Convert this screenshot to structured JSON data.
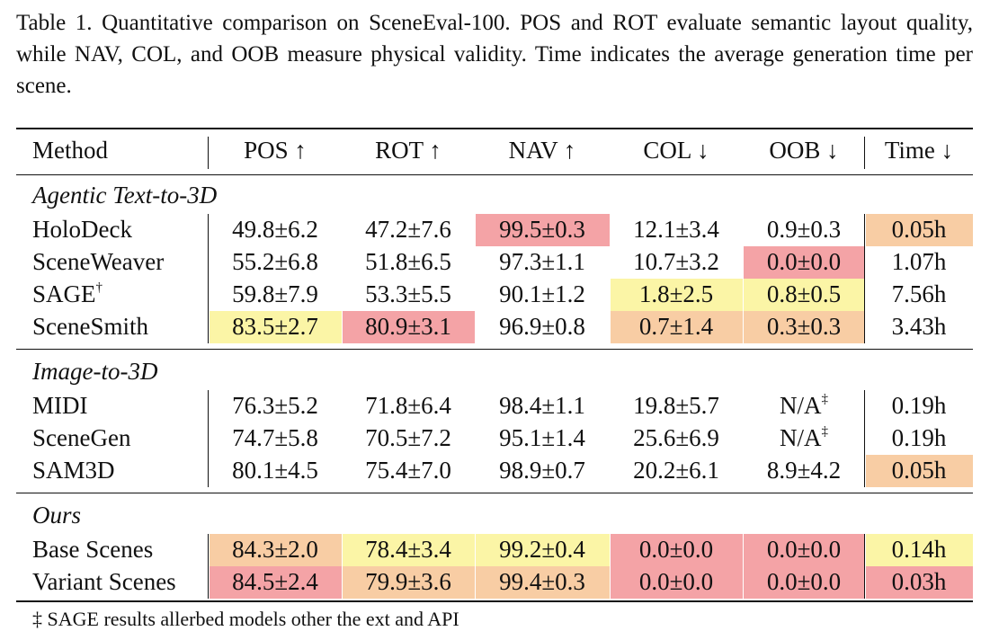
{
  "caption": "Table 1. Quantitative comparison on SceneEval-100. POS and ROT evaluate semantic layout quality, while NAV, COL, and OOB measure physical validity. Time indicates the average generation time per scene.",
  "headers": [
    "Method",
    "POS ↑",
    "ROT ↑",
    "NAV ↑",
    "COL ↓",
    "OOB ↓",
    "Time ↓"
  ],
  "colors": {
    "red": "#f4a3a6",
    "orange": "#f8cda4",
    "yellow": "#fbf5a6"
  },
  "sections": [
    {
      "title": "Agentic Text-to-3D",
      "rows": [
        {
          "method": "HoloDeck",
          "sup": "",
          "cells": [
            {
              "text": "49.8±6.2",
              "hl": ""
            },
            {
              "text": "47.2±7.6",
              "hl": ""
            },
            {
              "text": "99.5±0.3",
              "hl": "red"
            },
            {
              "text": "12.1±3.4",
              "hl": ""
            },
            {
              "text": "0.9±0.3",
              "hl": ""
            },
            {
              "text": "0.05h",
              "hl": "orange"
            }
          ]
        },
        {
          "method": "SceneWeaver",
          "sup": "",
          "cells": [
            {
              "text": "55.2±6.8",
              "hl": ""
            },
            {
              "text": "51.8±6.5",
              "hl": ""
            },
            {
              "text": "97.3±1.1",
              "hl": ""
            },
            {
              "text": "10.7±3.2",
              "hl": ""
            },
            {
              "text": "0.0±0.0",
              "hl": "red"
            },
            {
              "text": "1.07h",
              "hl": ""
            }
          ]
        },
        {
          "method": "SAGE",
          "sup": "†",
          "cells": [
            {
              "text": "59.8±7.9",
              "hl": ""
            },
            {
              "text": "53.3±5.5",
              "hl": ""
            },
            {
              "text": "90.1±1.2",
              "hl": ""
            },
            {
              "text": "1.8±2.5",
              "hl": "yellow"
            },
            {
              "text": "0.8±0.5",
              "hl": "yellow"
            },
            {
              "text": "7.56h",
              "hl": ""
            }
          ]
        },
        {
          "method": "SceneSmith",
          "sup": "",
          "cells": [
            {
              "text": "83.5±2.7",
              "hl": "yellow"
            },
            {
              "text": "80.9±3.1",
              "hl": "red"
            },
            {
              "text": "96.9±0.8",
              "hl": ""
            },
            {
              "text": "0.7±1.4",
              "hl": "orange"
            },
            {
              "text": "0.3±0.3",
              "hl": "orange"
            },
            {
              "text": "3.43h",
              "hl": ""
            }
          ]
        }
      ]
    },
    {
      "title": "Image-to-3D",
      "rows": [
        {
          "method": "MIDI",
          "sup": "",
          "cells": [
            {
              "text": "76.3±5.2",
              "hl": ""
            },
            {
              "text": "71.8±6.4",
              "hl": ""
            },
            {
              "text": "98.4±1.1",
              "hl": ""
            },
            {
              "text": "19.8±5.7",
              "hl": ""
            },
            {
              "text": "N/A",
              "sup": "‡",
              "hl": ""
            },
            {
              "text": "0.19h",
              "hl": ""
            }
          ]
        },
        {
          "method": "SceneGen",
          "sup": "",
          "cells": [
            {
              "text": "74.7±5.8",
              "hl": ""
            },
            {
              "text": "70.5±7.2",
              "hl": ""
            },
            {
              "text": "95.1±1.4",
              "hl": ""
            },
            {
              "text": "25.6±6.9",
              "hl": ""
            },
            {
              "text": "N/A",
              "sup": "‡",
              "hl": ""
            },
            {
              "text": "0.19h",
              "hl": ""
            }
          ]
        },
        {
          "method": "SAM3D",
          "sup": "",
          "cells": [
            {
              "text": "80.1±4.5",
              "hl": ""
            },
            {
              "text": "75.4±7.0",
              "hl": ""
            },
            {
              "text": "98.9±0.7",
              "hl": ""
            },
            {
              "text": "20.2±6.1",
              "hl": ""
            },
            {
              "text": "8.9±4.2",
              "hl": ""
            },
            {
              "text": "0.05h",
              "hl": "orange"
            }
          ]
        }
      ]
    },
    {
      "title": "Ours",
      "rows": [
        {
          "method": "Base Scenes",
          "sup": "",
          "cells": [
            {
              "text": "84.3±2.0",
              "hl": "orange"
            },
            {
              "text": "78.4±3.4",
              "hl": "yellow"
            },
            {
              "text": "99.2±0.4",
              "hl": "yellow"
            },
            {
              "text": "0.0±0.0",
              "hl": "red"
            },
            {
              "text": "0.0±0.0",
              "hl": "red"
            },
            {
              "text": "0.14h",
              "hl": "yellow"
            }
          ]
        },
        {
          "method": "Variant Scenes",
          "sup": "",
          "cells": [
            {
              "text": "84.5±2.4",
              "hl": "red"
            },
            {
              "text": "79.9±3.6",
              "hl": "orange"
            },
            {
              "text": "99.4±0.3",
              "hl": "orange"
            },
            {
              "text": "0.0±0.0",
              "hl": "red"
            },
            {
              "text": "0.0±0.0",
              "hl": "red"
            },
            {
              "text": "0.03h",
              "hl": "red"
            }
          ]
        }
      ]
    }
  ],
  "footnote": "‡ SAGE results allerbed models other the ext and API"
}
